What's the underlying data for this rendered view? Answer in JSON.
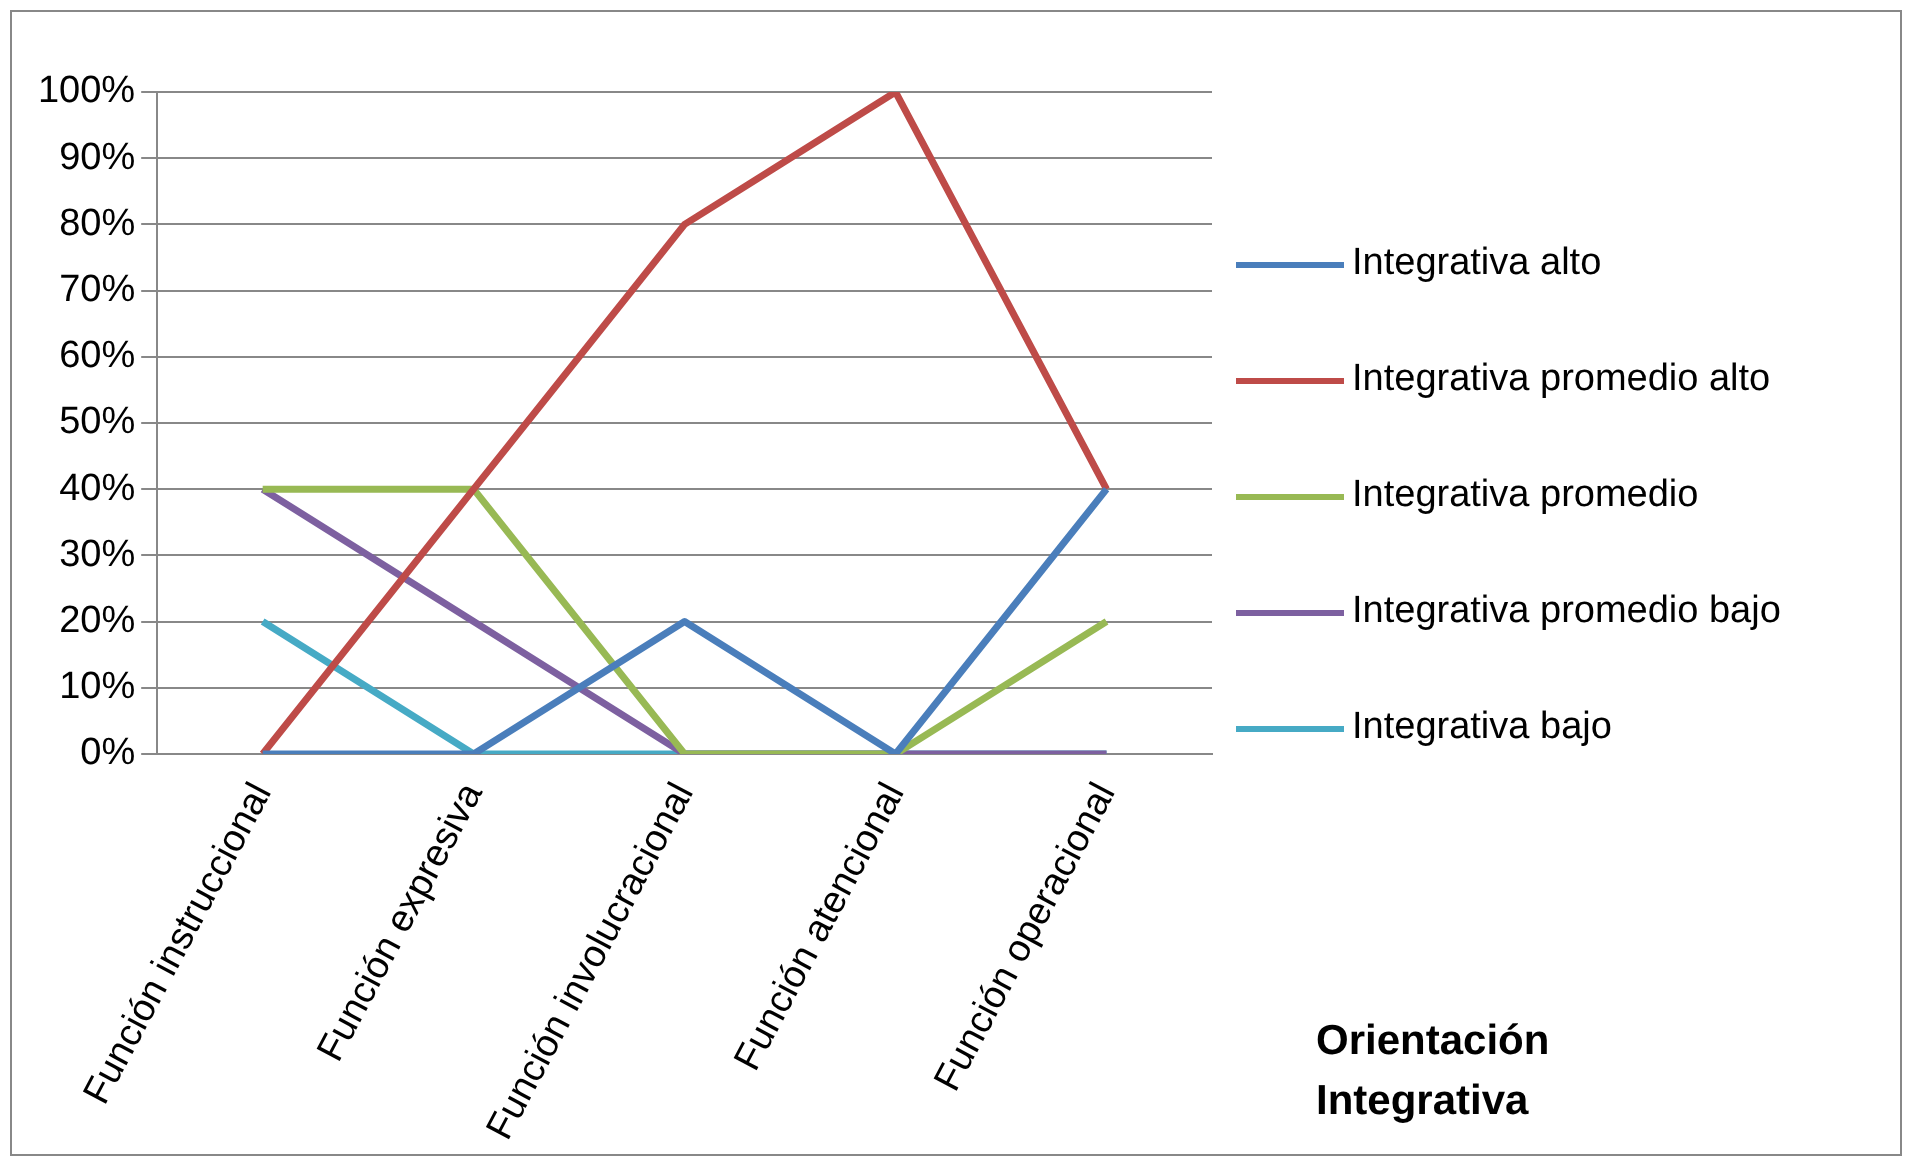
{
  "chart_data": {
    "type": "line",
    "xlabel": "Orientación Integrativa",
    "categories": [
      "Función instruccional",
      "Función expresiva",
      "Función involucracional",
      "Función atencional",
      "Función operacional"
    ],
    "series": [
      {
        "name": "Integrativa alto",
        "color": "#4a7ebb",
        "values": [
          0,
          0,
          20,
          0,
          40
        ]
      },
      {
        "name": "Integrativa promedio alto",
        "color": "#be4b48",
        "values": [
          0,
          40,
          80,
          100,
          40
        ]
      },
      {
        "name": "Integrativa promedio",
        "color": "#98b954",
        "values": [
          40,
          40,
          0,
          0,
          20
        ]
      },
      {
        "name": "Integrativa promedio bajo",
        "color": "#7d60a0",
        "values": [
          40,
          20,
          0,
          0,
          0
        ]
      },
      {
        "name": "Integrativa bajo",
        "color": "#46aac5",
        "values": [
          20,
          0,
          0,
          0,
          0
        ]
      }
    ],
    "ylim": [
      0,
      100
    ],
    "yticks": [
      {
        "value": 0,
        "label": "0%"
      },
      {
        "value": 10,
        "label": "10%"
      },
      {
        "value": 20,
        "label": "20%"
      },
      {
        "value": 30,
        "label": "30%"
      },
      {
        "value": 40,
        "label": "40%"
      },
      {
        "value": 50,
        "label": "50%"
      },
      {
        "value": 60,
        "label": "60%"
      },
      {
        "value": 70,
        "label": "70%"
      },
      {
        "value": 80,
        "label": "80%"
      },
      {
        "value": 90,
        "label": "90%"
      },
      {
        "value": 100,
        "label": "100%"
      }
    ],
    "grid": "y",
    "legend": "right",
    "marker": "none",
    "line_style": "solid"
  }
}
